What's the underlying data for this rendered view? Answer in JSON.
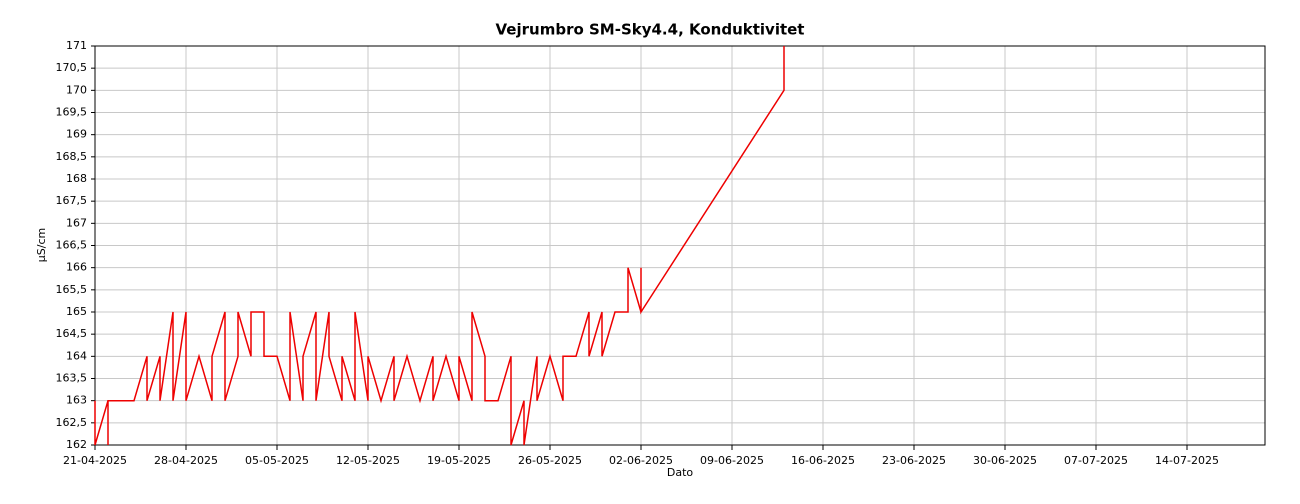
{
  "chart_data": {
    "type": "line",
    "title": "Vejrumbro SM-Sky4.4, Konduktivitet",
    "x_label": "Dato",
    "y_label": "µS/cm",
    "x": [
      "21-04-2025",
      "21-04-2025",
      "22-04-2025",
      "22-04-2025",
      "22-04-2025",
      "24-04-2025",
      "25-04-2025",
      "25-04-2025",
      "26-04-2025",
      "26-04-2025",
      "27-04-2025",
      "27-04-2025",
      "28-04-2025",
      "28-04-2025",
      "29-04-2025",
      "30-04-2025",
      "30-04-2025",
      "01-05-2025",
      "01-05-2025",
      "02-05-2025",
      "02-05-2025",
      "03-05-2025",
      "03-05-2025",
      "04-05-2025",
      "04-05-2025",
      "05-05-2025",
      "06-05-2025",
      "06-05-2025",
      "07-05-2025",
      "07-05-2025",
      "08-05-2025",
      "08-05-2025",
      "09-05-2025",
      "09-05-2025",
      "10-05-2025",
      "10-05-2025",
      "11-05-2025",
      "11-05-2025",
      "12-05-2025",
      "12-05-2025",
      "13-05-2025",
      "14-05-2025",
      "14-05-2025",
      "15-05-2025",
      "16-05-2025",
      "17-05-2025",
      "17-05-2025",
      "18-05-2025",
      "19-05-2025",
      "19-05-2025",
      "20-05-2025",
      "20-05-2025",
      "21-05-2025",
      "21-05-2025",
      "22-05-2025",
      "23-05-2025",
      "23-05-2025",
      "24-05-2025",
      "24-05-2025",
      "25-05-2025",
      "25-05-2025",
      "26-05-2025",
      "27-05-2025",
      "27-05-2025",
      "28-05-2025",
      "29-05-2025",
      "29-05-2025",
      "30-05-2025",
      "30-05-2025",
      "31-05-2025",
      "01-06-2025",
      "01-06-2025",
      "02-06-2025",
      "02-06-2025",
      "02-06-2025",
      "13-06-2025",
      "13-06-2025"
    ],
    "series": [
      {
        "name": "Konduktivitet",
        "color": "#ee0000",
        "values": [
          163,
          162,
          163,
          162,
          163,
          163,
          164,
          163,
          164,
          163,
          165,
          163,
          165,
          163,
          164,
          163,
          164,
          165,
          163,
          164,
          165,
          164,
          165,
          165,
          164,
          164,
          163,
          165,
          163,
          164,
          165,
          163,
          165,
          164,
          163,
          164,
          163,
          165,
          163,
          164,
          163,
          164,
          163,
          164,
          163,
          164,
          163,
          164,
          163,
          164,
          163,
          165,
          164,
          163,
          163,
          164,
          162,
          163,
          162,
          164,
          163,
          164,
          163,
          164,
          164,
          165,
          164,
          165,
          164,
          165,
          165,
          166,
          165,
          166,
          165,
          170,
          171
        ]
      }
    ],
    "xlim": [
      "21-04-2025",
      "20-07-2025"
    ],
    "xticks": [
      "21-04-2025",
      "28-04-2025",
      "05-05-2025",
      "12-05-2025",
      "19-05-2025",
      "26-05-2025",
      "02-06-2025",
      "09-06-2025",
      "16-06-2025",
      "23-06-2025",
      "30-06-2025",
      "07-07-2025",
      "14-07-2025"
    ],
    "ylim": [
      162,
      171
    ],
    "yticks": [
      162,
      {
        "value": 162.5,
        "label": "162,5"
      },
      163,
      {
        "value": 163.5,
        "label": "163,5"
      },
      164,
      {
        "value": 164.5,
        "label": "164,5"
      },
      165,
      {
        "value": 165.5,
        "label": "165,5"
      },
      166,
      {
        "value": 166.5,
        "label": "166,5"
      },
      167,
      {
        "value": 167.5,
        "label": "167,5"
      },
      168,
      {
        "value": 168.5,
        "label": "168,5"
      },
      169,
      {
        "value": 169.5,
        "label": "169,5"
      },
      170,
      {
        "value": 170.5,
        "label": "170,5"
      },
      171
    ],
    "grid": true
  }
}
